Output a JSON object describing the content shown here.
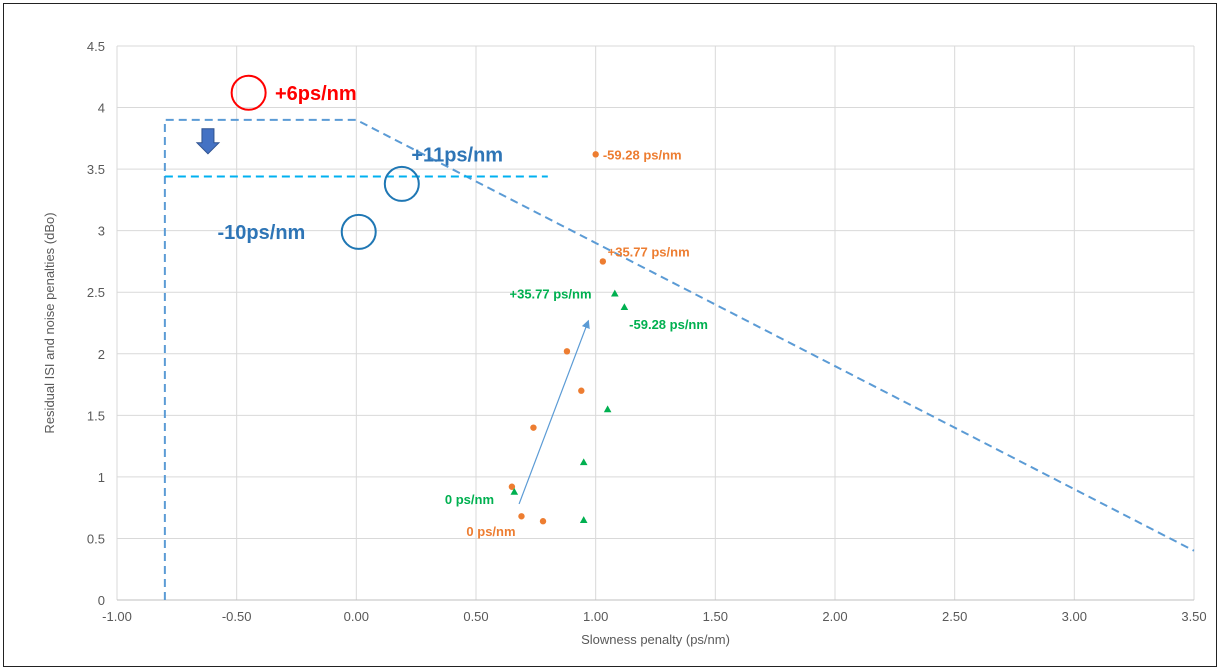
{
  "chart_data": {
    "type": "scatter",
    "xlabel": "Slowness penalty (ps/nm)",
    "ylabel": "Residual ISI and noise penalties (dBo)",
    "xlim": [
      -1.0,
      3.5
    ],
    "ylim": [
      0,
      4.5
    ],
    "x_ticks": [
      "-1.00",
      "-0.50",
      "0.00",
      "0.50",
      "1.00",
      "1.50",
      "2.00",
      "2.50",
      "3.00",
      "3.50"
    ],
    "y_ticks": [
      "0",
      "0.5",
      "1",
      "1.5",
      "2",
      "2.5",
      "3",
      "3.5",
      "4",
      "4.5"
    ],
    "grid": true,
    "legend": "none",
    "series": [
      {
        "color": "#ED7D31",
        "marker": "circle",
        "points": [
          {
            "x": 0.65,
            "y": 0.92
          },
          {
            "x": 0.69,
            "y": 0.68
          },
          {
            "x": 0.78,
            "y": 0.64
          },
          {
            "x": 0.74,
            "y": 1.4
          },
          {
            "x": 0.88,
            "y": 2.02
          },
          {
            "x": 0.94,
            "y": 1.7
          },
          {
            "x": 1.0,
            "y": 3.62
          },
          {
            "x": 1.03,
            "y": 2.75
          }
        ]
      },
      {
        "color": "#00B050",
        "marker": "triangle",
        "points": [
          {
            "x": 0.66,
            "y": 0.88
          },
          {
            "x": 0.95,
            "y": 0.65
          },
          {
            "x": 0.95,
            "y": 1.12
          },
          {
            "x": 1.05,
            "y": 1.55
          },
          {
            "x": 1.08,
            "y": 2.49
          },
          {
            "x": 1.12,
            "y": 2.38
          }
        ]
      }
    ],
    "lines": [
      {
        "color": "#5B9BD5",
        "dash": true,
        "points": [
          [
            -0.8,
            0.0
          ],
          [
            -0.8,
            3.9
          ],
          [
            0.0,
            3.9
          ],
          [
            3.5,
            0.4
          ]
        ]
      },
      {
        "color": "#00B0F0",
        "dash": true,
        "points": [
          [
            -0.8,
            3.44
          ],
          [
            0.8,
            3.44
          ]
        ]
      }
    ],
    "arrows": [
      {
        "color": "#5B9BD5",
        "from": [
          0.68,
          0.78
        ],
        "to": [
          0.97,
          2.27
        ]
      }
    ],
    "block_arrows": [
      {
        "color": "#4472C4",
        "at": [
          -0.62,
          3.73
        ]
      }
    ],
    "circles": [
      {
        "color": "#FF0000",
        "x": -0.45,
        "y": 4.12
      },
      {
        "color": "#1F77B4",
        "x": 0.19,
        "y": 3.38
      },
      {
        "color": "#1F77B4",
        "x": 0.01,
        "y": 2.99
      }
    ],
    "annotations": [
      {
        "text": "+6ps/nm",
        "color": "#FF0000",
        "size": "big",
        "x": -0.34,
        "y": 4.12
      },
      {
        "text": "+11ps/nm",
        "color": "#2E75B6",
        "size": "big",
        "x": 0.23,
        "y": 3.62
      },
      {
        "text": "-10ps/nm",
        "color": "#2E75B6",
        "size": "big",
        "x": -0.58,
        "y": 2.99
      },
      {
        "text": "-59.28 ps/nm",
        "color": "#ED7D31",
        "size": "small",
        "x": 1.03,
        "y": 3.62
      },
      {
        "text": "+35.77 ps/nm",
        "color": "#ED7D31",
        "size": "small",
        "x": 1.05,
        "y": 2.83
      },
      {
        "text": "+35.77 ps/nm",
        "color": "#00B050",
        "size": "small",
        "x": 0.64,
        "y": 2.49
      },
      {
        "text": "-59.28 ps/nm",
        "color": "#00B050",
        "size": "small",
        "x": 1.14,
        "y": 2.24
      },
      {
        "text": "0 ps/nm",
        "color": "#00B050",
        "size": "small",
        "x": 0.37,
        "y": 0.82
      },
      {
        "text": "0 ps/nm",
        "color": "#ED7D31",
        "size": "small",
        "x": 0.46,
        "y": 0.56
      }
    ]
  }
}
